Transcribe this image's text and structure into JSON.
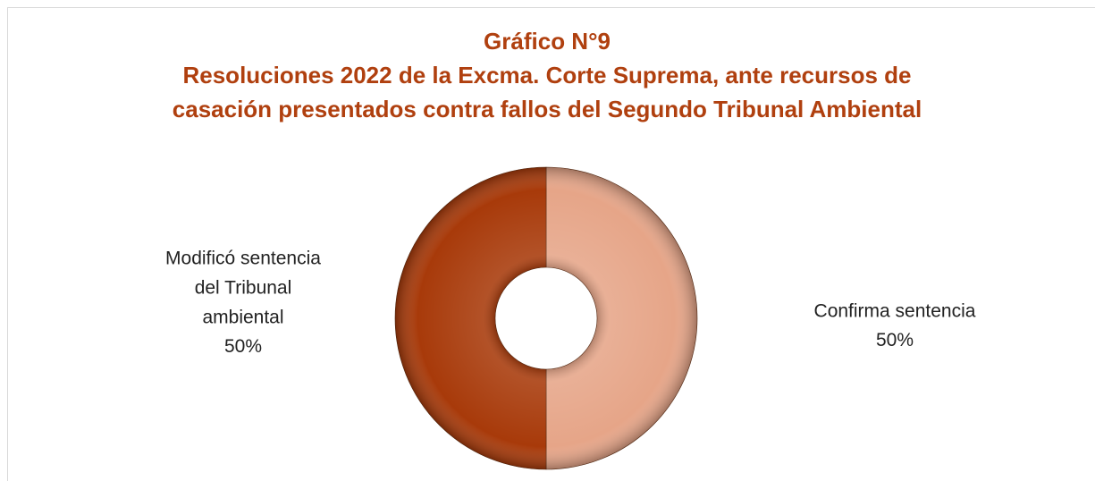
{
  "chart_data": {
    "type": "donut",
    "title": [
      "Gráfico N°9",
      "Resoluciones 2022 de la Excma. Corte Suprema, ante recursos de",
      "casación presentados contra fallos del Segundo Tribunal Ambiental"
    ],
    "categories": [
      "Confirma sentencia",
      "Modificó sentencia del Tribunal ambiental"
    ],
    "values": [
      50,
      50
    ],
    "value_labels": [
      "50%",
      "50%"
    ],
    "colors": [
      "#E6A588",
      "#A83A0A"
    ]
  }
}
